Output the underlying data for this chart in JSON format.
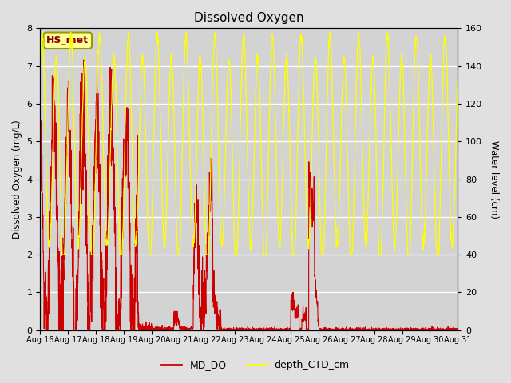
{
  "title": "Dissolved Oxygen",
  "ylabel_left": "Dissolved Oxygen (mg/L)",
  "ylabel_right": "Water level (cm)",
  "ylim_left": [
    0.0,
    8.0
  ],
  "ylim_right": [
    0,
    160
  ],
  "yticks_left": [
    0.0,
    1.0,
    2.0,
    3.0,
    4.0,
    5.0,
    6.0,
    7.0,
    8.0
  ],
  "yticks_right": [
    0,
    20,
    40,
    60,
    80,
    100,
    120,
    140,
    160
  ],
  "fig_bg_color": "#e0e0e0",
  "plot_bg_color": "#d3d3d3",
  "annotation_text": "HS_met",
  "annotation_bg": "#ffff99",
  "annotation_border": "#999900",
  "annotation_text_color": "#8b0000",
  "line_DO_color": "#cc0000",
  "line_depth_color": "#ffff00",
  "legend_DO": "MD_DO",
  "legend_depth": "depth_CTD_cm",
  "x_tick_labels": [
    "Aug 16",
    "Aug 17",
    "Aug 18",
    "Aug 19",
    "Aug 20",
    "Aug 21",
    "Aug 22",
    "Aug 23",
    "Aug 24",
    "Aug 25",
    "Aug 26",
    "Aug 27",
    "Aug 28",
    "Aug 29",
    "Aug 30",
    "Aug 31"
  ]
}
